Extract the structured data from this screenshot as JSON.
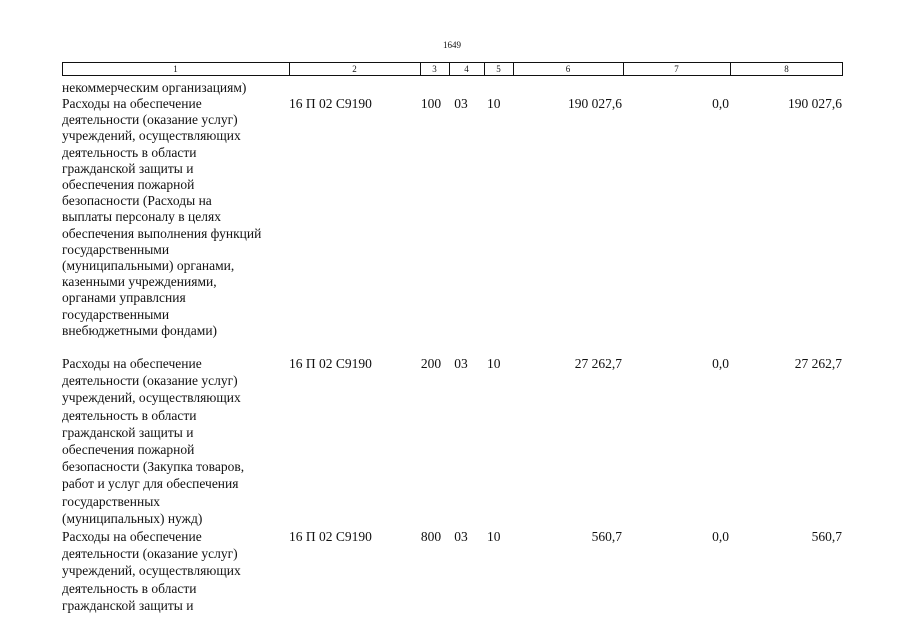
{
  "header": {
    "page_number": "1649"
  },
  "table": {
    "columns": [
      "1",
      "2",
      "3",
      "4",
      "5",
      "6",
      "7",
      "8"
    ],
    "rows": [
      {
        "description": [
          "некоммерческим организациям)"
        ]
      },
      {
        "description": [
          "Расходы на обеспечение",
          "деятельности (оказание услуг)",
          "учреждений, осуществляющих",
          "деятельность в области",
          "гражданской защиты и",
          "обеспечения пожарной",
          "безопасности (Расходы на",
          "выплаты персоналу в целях",
          "обеспечения выполнения функций",
          "государственными",
          "(муниципальными) органами,",
          "казенными учреждениями,",
          "органами управлсния",
          "государственными",
          "внебюджетными фондами)"
        ],
        "code": "16 П 02 С9190",
        "c3": "100",
        "c4": "03",
        "c5": "10",
        "c6": "190 027,6",
        "c7": "0,0",
        "c8": "190 027,6"
      },
      {
        "description": [
          "Расходы на обеспечение",
          "деятельности (оказание услуг)",
          "учреждений, осуществляющих",
          "деятельность в области",
          "гражданской защиты и",
          "обеспечения пожарной",
          "безопасности (Закупка товаров,",
          "работ и услуг для обеспечения",
          "государственных",
          "(муниципальных) нужд)"
        ],
        "code": "16 П 02 С9190",
        "c3": "200",
        "c4": "03",
        "c5": "10",
        "c6": "27 262,7",
        "c7": "0,0",
        "c8": "27 262,7"
      },
      {
        "description": [
          "Расходы на обеспечение",
          "деятельности (оказание услуг)",
          "учреждений, осуществляющих",
          "деятельность в области",
          "гражданской защиты и"
        ],
        "code": "16 П 02 С9190",
        "c3": "800",
        "c4": "03",
        "c5": "10",
        "c6": "560,7",
        "c7": "0,0",
        "c8": "560,7"
      }
    ]
  }
}
